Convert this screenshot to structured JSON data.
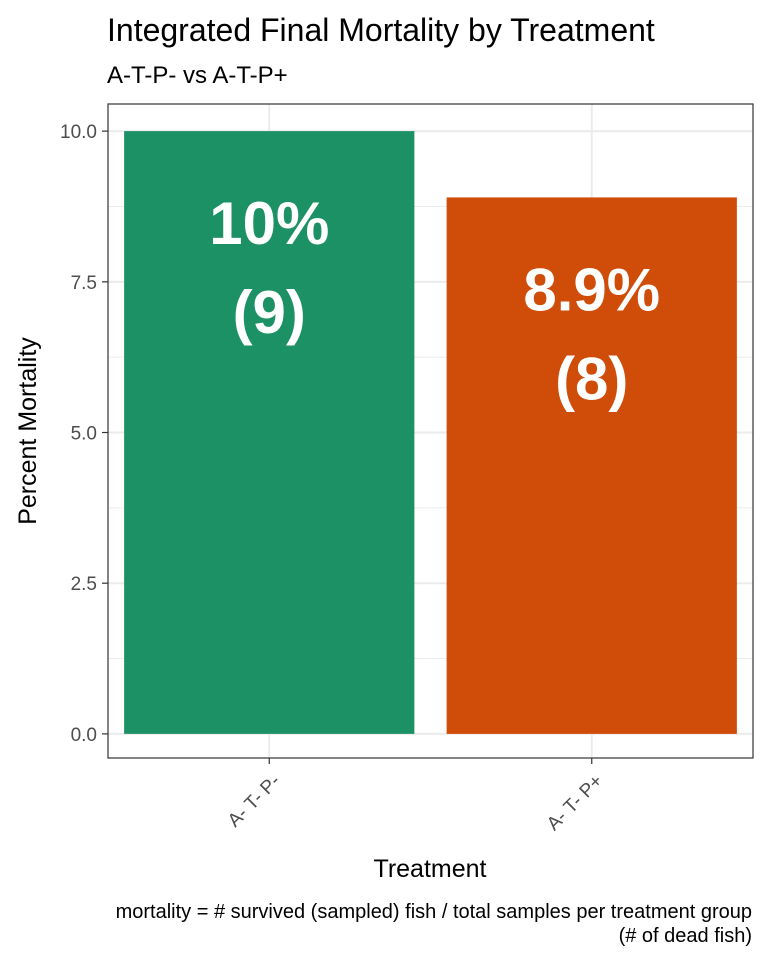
{
  "chart_data": {
    "type": "bar",
    "title": "Integrated Final Mortality by Treatment",
    "subtitle": "A-T-P- vs A-T-P+",
    "xlabel": "Treatment",
    "ylabel": "Percent Mortality",
    "ylim": [
      -0.4,
      10.45
    ],
    "yticks": [
      "0.0",
      "2.5",
      "5.0",
      "7.5",
      "10.0"
    ],
    "ytick_values": [
      0,
      2.5,
      5,
      7.5,
      10
    ],
    "categories": [
      "A- T- P-",
      "A- T- P+"
    ],
    "values": [
      10,
      8.9
    ],
    "percent_labels": [
      "10%",
      "8.9%"
    ],
    "count_labels": [
      "(9)",
      "(8)"
    ],
    "colors": [
      "#1c9166",
      "#cf4c09"
    ],
    "grid": true,
    "caption_lines": [
      "mortality = # survived (sampled) fish / total samples per treatment group",
      "(# of dead fish)"
    ]
  }
}
